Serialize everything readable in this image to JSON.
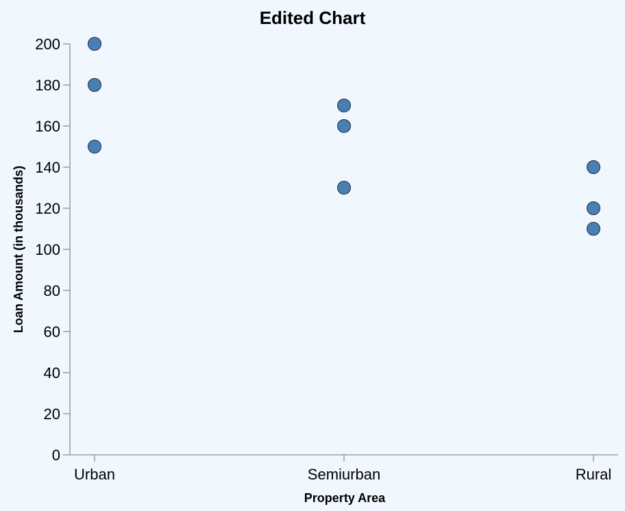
{
  "chart_data": {
    "type": "scatter",
    "title": "Edited Chart",
    "xlabel": "Property Area",
    "ylabel": "Loan Amount (in thousands)",
    "categories": [
      "Urban",
      "Semiurban",
      "Rural"
    ],
    "ylim": [
      0,
      200
    ],
    "yticks": [
      "0",
      "20",
      "40",
      "60",
      "80",
      "100",
      "120",
      "140",
      "160",
      "180",
      "200"
    ],
    "grid": false,
    "points": [
      {
        "x": "Urban",
        "y": 200
      },
      {
        "x": "Urban",
        "y": 180
      },
      {
        "x": "Urban",
        "y": 150
      },
      {
        "x": "Semiurban",
        "y": 170
      },
      {
        "x": "Semiurban",
        "y": 160
      },
      {
        "x": "Semiurban",
        "y": 130
      },
      {
        "x": "Rural",
        "y": 140
      },
      {
        "x": "Rural",
        "y": 120
      },
      {
        "x": "Rural",
        "y": 110
      }
    ],
    "colors": {
      "point_fill": "#4a7fb5",
      "point_stroke": "#1f2d3a",
      "axis": "#888f99",
      "background": "#f0f7ff"
    }
  }
}
